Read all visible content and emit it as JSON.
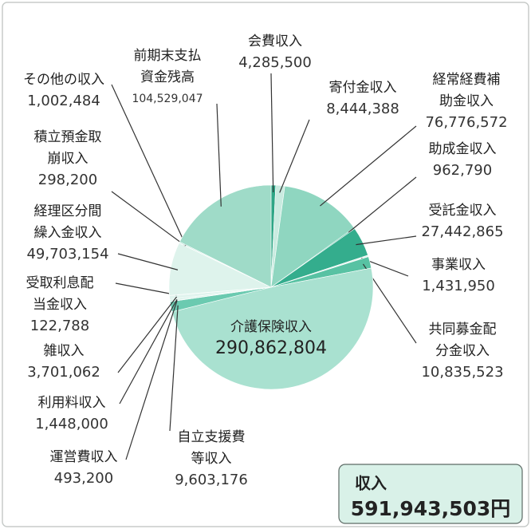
{
  "chart_data": {
    "type": "pie",
    "categories": [
      [
        "会費収入"
      ],
      [
        "寄付金収入"
      ],
      [
        "経常経費補",
        "助金収入"
      ],
      [
        "助成金収入"
      ],
      [
        "受託金収入"
      ],
      [
        "事業収入"
      ],
      [
        "共同募金配",
        "分金収入"
      ],
      [
        "介護保険収入"
      ],
      [
        "自立支援費",
        "等収入"
      ],
      [
        "運営費収入"
      ],
      [
        "利用料収入"
      ],
      [
        "雑収入"
      ],
      [
        "受取利息配",
        "当金収入"
      ],
      [
        "経理区分間",
        "繰入金収入"
      ],
      [
        "積立預金取",
        "崩収入"
      ],
      [
        "その他の収入"
      ],
      [
        "前期末支払",
        "資金残高"
      ]
    ],
    "values": [
      4285500,
      8444388,
      76776572,
      962790,
      27442865,
      1431950,
      10835523,
      290862804,
      9603176,
      493200,
      1448000,
      3701062,
      122788,
      49703154,
      298200,
      1002484,
      104529047
    ],
    "value_labels": [
      "4,285,500",
      "8,444,388",
      "76,776,572",
      "962,790",
      "27,442,865",
      "1,431,950",
      "10,835,523",
      "290,862,804",
      "9,603,176",
      "493,200",
      "1,448,000",
      "3,701,062",
      "122,788",
      "49,703,154",
      "298,200",
      "1,002,484",
      "104,529,047"
    ],
    "colors": [
      "#2ea686",
      "#c9ebe0",
      "#8fd6c0",
      "#3db393",
      "#34ad8d",
      "#e4f5ef",
      "#58c2a3",
      "#a9e1d0",
      "#6bcab0",
      "#f4fbf8",
      "#cdeee3",
      "#e1f4ee",
      "#d6f0e8",
      "#def3ec",
      "#c3e9dc",
      "#b9e5d7",
      "#9fdbc8"
    ],
    "total_title": "収入",
    "total_text": "591,943,503円"
  }
}
